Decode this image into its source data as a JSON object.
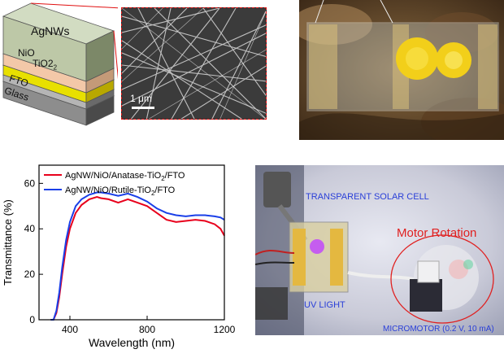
{
  "schematic": {
    "layers": [
      "AgNWs",
      "NiO",
      "TiO2",
      "FTO",
      "Glass"
    ],
    "tio2_sub": "2",
    "scale_bar": "1 μm"
  },
  "photo_top": {
    "description_colors": {
      "flower": "#f2cf1a",
      "background": "#6b4a2a"
    }
  },
  "chart_data": {
    "type": "line",
    "xlabel": "Wavelength (nm)",
    "ylabel": "Transmittance (%)",
    "xlim": [
      240,
      1200
    ],
    "ylim": [
      0,
      68
    ],
    "xticks": [
      400,
      800,
      1200
    ],
    "yticks": [
      0,
      20,
      40,
      60
    ],
    "legend_position": "top-left",
    "series": [
      {
        "name_pre": "AgNW/NiO/Anatase-TiO",
        "name_sub": "2",
        "name_post": "/FTO",
        "color": "#e8001c",
        "x": [
          300,
          315,
          330,
          345,
          360,
          380,
          400,
          430,
          460,
          500,
          540,
          560,
          600,
          650,
          700,
          750,
          800,
          850,
          900,
          950,
          1000,
          1050,
          1100,
          1150,
          1180,
          1200
        ],
        "y": [
          0,
          0,
          3,
          10,
          20,
          32,
          40,
          47,
          50.5,
          53,
          54,
          53.5,
          53,
          51.5,
          53,
          51.5,
          50,
          47,
          44,
          43,
          43.5,
          44,
          43.5,
          42,
          40,
          37
        ]
      },
      {
        "name_pre": "AgNW/NiO/Rutile-TiO",
        "name_sub": "2",
        "name_post": "/FTO",
        "color": "#1a3fe8",
        "x": [
          300,
          315,
          330,
          345,
          360,
          380,
          400,
          430,
          460,
          500,
          540,
          560,
          600,
          650,
          700,
          750,
          800,
          850,
          900,
          950,
          1000,
          1050,
          1100,
          1150,
          1180,
          1200
        ],
        "y": [
          0,
          0,
          4,
          12,
          23,
          35,
          43,
          50,
          53,
          55,
          56,
          56,
          55.5,
          54.5,
          55.5,
          54,
          52,
          49,
          47,
          46,
          45.5,
          46,
          46,
          45.5,
          45,
          44
        ]
      }
    ]
  },
  "photo_bottom": {
    "label_solar": "TRANSPARENT SOLAR CELL",
    "label_motor": "Motor  Rotation",
    "label_uv": "UV LIGHT",
    "label_micromotor": "MICROMOTOR (0.2 V, 10 mA)"
  }
}
